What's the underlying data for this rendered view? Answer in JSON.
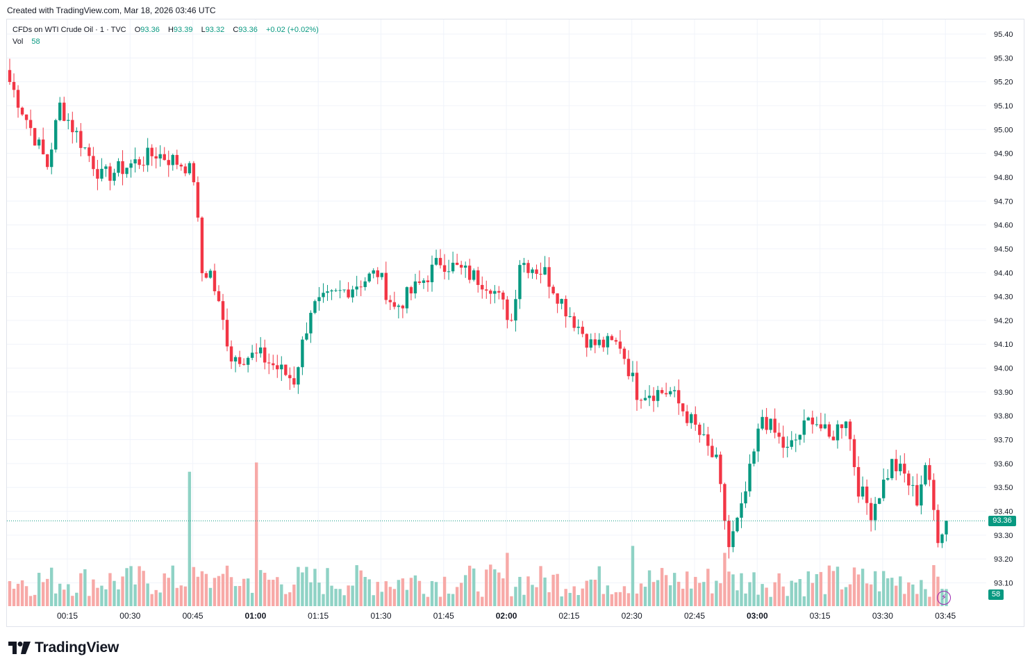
{
  "header": {
    "created_text": "Created with TradingView.com, Mar 18, 2026 03:46 UTC"
  },
  "legend": {
    "symbol": "CFDs on WTI Crude Oil · 1 · TVC",
    "o_label": "O",
    "o_value": "93.36",
    "h_label": "H",
    "h_value": "93.39",
    "l_label": "L",
    "l_value": "93.32",
    "c_label": "C",
    "c_value": "93.36",
    "change": "+0.02 (+0.02%)",
    "vol_label": "Vol",
    "vol_value": "58"
  },
  "price_tag": "93.36",
  "vol_tag": "58",
  "footer": {
    "brand": "TradingView"
  },
  "colors": {
    "up": "#089981",
    "down": "#f23645",
    "up_vol": "#8fd2c5",
    "down_vol": "#f7a9a7",
    "grid": "#f0f3fa",
    "accent": "#9c27b0"
  },
  "icons": {
    "alert": "lightning-icon",
    "logo": "tradingview-logo-icon"
  },
  "chart_data": {
    "type": "candlestick",
    "title": "CFDs on WTI Crude Oil · 1 · TVC",
    "interval_minutes": 1,
    "ylim": [
      93.0,
      95.45
    ],
    "y_ticks": [
      "95.40",
      "95.30",
      "95.20",
      "95.10",
      "95.00",
      "94.90",
      "94.80",
      "94.70",
      "94.60",
      "94.50",
      "94.40",
      "94.30",
      "94.20",
      "94.10",
      "94.00",
      "93.90",
      "93.80",
      "93.70",
      "93.60",
      "93.50",
      "93.40",
      "93.30",
      "93.20",
      "93.10"
    ],
    "x_ticks": [
      {
        "label": "00:15",
        "bold": false
      },
      {
        "label": "00:30",
        "bold": false
      },
      {
        "label": "00:45",
        "bold": false
      },
      {
        "label": "01:00",
        "bold": true
      },
      {
        "label": "01:15",
        "bold": false
      },
      {
        "label": "01:30",
        "bold": false
      },
      {
        "label": "01:45",
        "bold": false
      },
      {
        "label": "02:00",
        "bold": true
      },
      {
        "label": "02:15",
        "bold": false
      },
      {
        "label": "02:30",
        "bold": false
      },
      {
        "label": "02:45",
        "bold": false
      },
      {
        "label": "03:00",
        "bold": true
      },
      {
        "label": "03:15",
        "bold": false
      },
      {
        "label": "03:30",
        "bold": false
      },
      {
        "label": "03:45",
        "bold": false
      }
    ],
    "x_range_minutes": [
      0,
      224
    ],
    "last_price": 93.36,
    "key_points": [
      {
        "t": 0,
        "price": 95.2
      },
      {
        "t": 9,
        "price": 94.85
      },
      {
        "t": 12,
        "price": 95.1
      },
      {
        "t": 22,
        "price": 94.8
      },
      {
        "t": 35,
        "price": 94.9
      },
      {
        "t": 42,
        "price": 94.85
      },
      {
        "t": 44,
        "price": 94.8
      },
      {
        "t": 46,
        "price": 94.4
      },
      {
        "t": 48,
        "price": 94.4
      },
      {
        "t": 53,
        "price": 94.05
      },
      {
        "t": 60,
        "price": 94.05
      },
      {
        "t": 68,
        "price": 93.95
      },
      {
        "t": 72,
        "price": 94.25
      },
      {
        "t": 88,
        "price": 94.4
      },
      {
        "t": 92,
        "price": 94.25
      },
      {
        "t": 98,
        "price": 94.35
      },
      {
        "t": 103,
        "price": 94.45
      },
      {
        "t": 115,
        "price": 94.35
      },
      {
        "t": 120,
        "price": 94.2
      },
      {
        "t": 122,
        "price": 94.45
      },
      {
        "t": 128,
        "price": 94.4
      },
      {
        "t": 133,
        "price": 94.25
      },
      {
        "t": 139,
        "price": 94.1
      },
      {
        "t": 146,
        "price": 94.1
      },
      {
        "t": 150,
        "price": 93.9
      },
      {
        "t": 158,
        "price": 93.9
      },
      {
        "t": 164,
        "price": 93.75
      },
      {
        "t": 169,
        "price": 93.6
      },
      {
        "t": 172,
        "price": 93.25
      },
      {
        "t": 175,
        "price": 93.4
      },
      {
        "t": 180,
        "price": 93.8
      },
      {
        "t": 186,
        "price": 93.65
      },
      {
        "t": 192,
        "price": 93.8
      },
      {
        "t": 196,
        "price": 93.7
      },
      {
        "t": 200,
        "price": 93.8
      },
      {
        "t": 203,
        "price": 93.5
      },
      {
        "t": 206,
        "price": 93.4
      },
      {
        "t": 211,
        "price": 93.6
      },
      {
        "t": 214,
        "price": 93.55
      },
      {
        "t": 217,
        "price": 93.45
      },
      {
        "t": 219,
        "price": 93.6
      },
      {
        "t": 222,
        "price": 93.3
      },
      {
        "t": 224,
        "price": 93.36
      }
    ],
    "volume_range": [
      0,
      60
    ],
    "volume_spikes": [
      {
        "t": 43,
        "volume": 58
      },
      {
        "t": 59,
        "volume": 62
      },
      {
        "t": 50,
        "volume": 13
      },
      {
        "t": 149,
        "volume": 26
      },
      {
        "t": 171,
        "volume": 23
      },
      {
        "t": 119,
        "volume": 23
      }
    ]
  }
}
